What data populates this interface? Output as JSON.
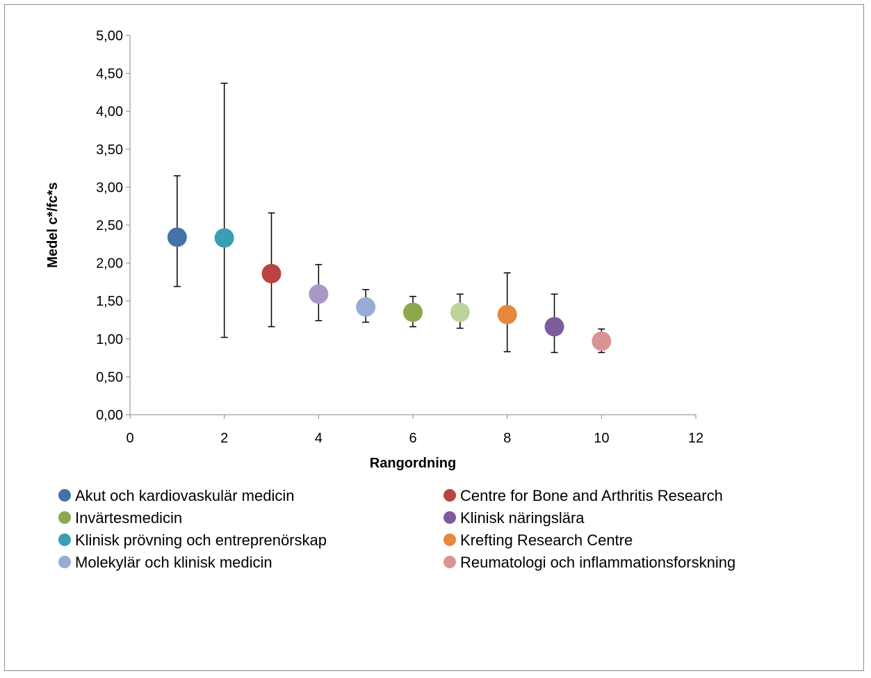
{
  "chart_data": {
    "type": "scatter",
    "xlabel": "Rangordning",
    "ylabel": "Medel c*/fc*s",
    "xlim": [
      0,
      12
    ],
    "ylim": [
      0,
      5
    ],
    "x_ticks": [
      "0",
      "2",
      "4",
      "6",
      "8",
      "10",
      "12"
    ],
    "y_ticks": [
      "0,00",
      "0,50",
      "1,00",
      "1,50",
      "2,00",
      "2,50",
      "3,00",
      "3,50",
      "4,00",
      "4,50",
      "5,00"
    ],
    "grid": false,
    "legend_position": "bottom",
    "series": [
      {
        "name": "Akut och kardiovaskulär medicin",
        "x": 1,
        "y": 2.34,
        "err_low": 1.69,
        "err_high": 3.15,
        "color": "#4472a8"
      },
      {
        "name": "Klinisk prövning och entreprenörskap",
        "x": 2,
        "y": 2.33,
        "err_low": 1.02,
        "err_high": 4.37,
        "color": "#3a9eb5"
      },
      {
        "name": "Centre for Bone and Arthritis Research",
        "x": 3,
        "y": 1.86,
        "err_low": 1.16,
        "err_high": 2.66,
        "color": "#b94441"
      },
      {
        "name": "",
        "x": 4,
        "y": 1.59,
        "err_low": 1.24,
        "err_high": 1.98,
        "color": "#a898c5"
      },
      {
        "name": "Molekylär och klinisk medicin",
        "x": 5,
        "y": 1.42,
        "err_low": 1.22,
        "err_high": 1.65,
        "color": "#94acd6"
      },
      {
        "name": "Invärtesmedicin",
        "x": 6,
        "y": 1.35,
        "err_low": 1.16,
        "err_high": 1.56,
        "color": "#8ba94c"
      },
      {
        "name": "",
        "x": 7,
        "y": 1.35,
        "err_low": 1.14,
        "err_high": 1.59,
        "color": "#bcd49a"
      },
      {
        "name": "Krefting Research Centre",
        "x": 8,
        "y": 1.32,
        "err_low": 0.83,
        "err_high": 1.87,
        "color": "#e6883c"
      },
      {
        "name": "Klinisk näringslära",
        "x": 9,
        "y": 1.16,
        "err_low": 0.82,
        "err_high": 1.59,
        "color": "#7c5c9c"
      },
      {
        "name": "Reumatologi och inflammationsforskning",
        "x": 10,
        "y": 0.97,
        "err_low": 0.82,
        "err_high": 1.13,
        "color": "#d99594"
      }
    ],
    "legend": [
      {
        "label": "Akut och kardiovaskulär medicin",
        "color": "#4472a8"
      },
      {
        "label": "Centre for Bone and Arthritis Research",
        "color": "#b94441"
      },
      {
        "label": "Invärtesmedicin",
        "color": "#8ba94c"
      },
      {
        "label": "Klinisk näringslära",
        "color": "#7c5c9c"
      },
      {
        "label": "Klinisk prövning och entreprenörskap",
        "color": "#3a9eb5"
      },
      {
        "label": "Krefting Research Centre",
        "color": "#e6883c"
      },
      {
        "label": "Molekylär och klinisk medicin",
        "color": "#94acd6"
      },
      {
        "label": "Reumatologi och inflammationsforskning",
        "color": "#d99594"
      }
    ]
  }
}
